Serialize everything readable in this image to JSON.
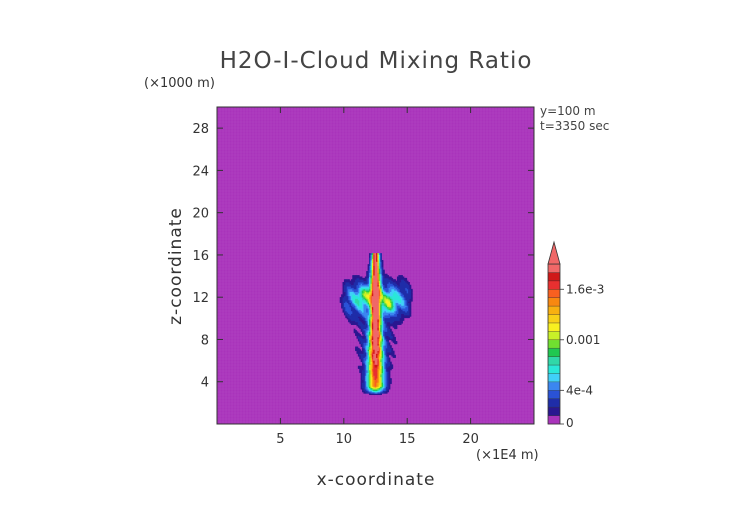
{
  "chart_data": {
    "type": "heatmap",
    "title": "H2O-I-Cloud Mixing Ratio",
    "xlabel": "x-coordinate",
    "ylabel": "z-coordinate",
    "x_unit": "(×1E4 m)",
    "y_unit": "(×1000 m)",
    "xlim": [
      0,
      25
    ],
    "ylim": [
      0,
      30
    ],
    "x_ticks": [
      5,
      10,
      15,
      20
    ],
    "y_ticks": [
      4,
      8,
      12,
      16,
      20,
      24,
      28
    ],
    "annotations": [
      "y=100 m",
      "t=3350 sec"
    ],
    "colorbar": {
      "tick_labels": [
        "0",
        "4e-4",
        "0.001",
        "1.6e-3"
      ],
      "tick_values": [
        0,
        0.0004,
        0.001,
        0.0016
      ],
      "levels": [
        0,
        0.0001,
        0.0002,
        0.0003,
        0.0004,
        0.0005,
        0.0006,
        0.0007,
        0.0008,
        0.0009,
        0.001,
        0.0011,
        0.0012,
        0.0013,
        0.0014,
        0.0015,
        0.0016,
        0.0017,
        0.0018,
        0.0019
      ],
      "colors": [
        "#a933bb",
        "#2a1790",
        "#1f2da8",
        "#2a52d6",
        "#3b86f0",
        "#40d0f8",
        "#2ae8d8",
        "#30d8a8",
        "#20c850",
        "#70e030",
        "#c8f028",
        "#f8f020",
        "#f8d018",
        "#f8b010",
        "#f88810",
        "#f86020",
        "#e83030",
        "#d01818",
        "#f06868"
      ],
      "extend": "max"
    },
    "field_description": {
      "background_value": 0,
      "plume_x_center": 12.5,
      "plume_base_z": 2.8,
      "plume_top_z": 16.2,
      "anvil_z_range": [
        9.5,
        14
      ],
      "anvil_x_range": [
        9.3,
        15.8
      ]
    }
  }
}
